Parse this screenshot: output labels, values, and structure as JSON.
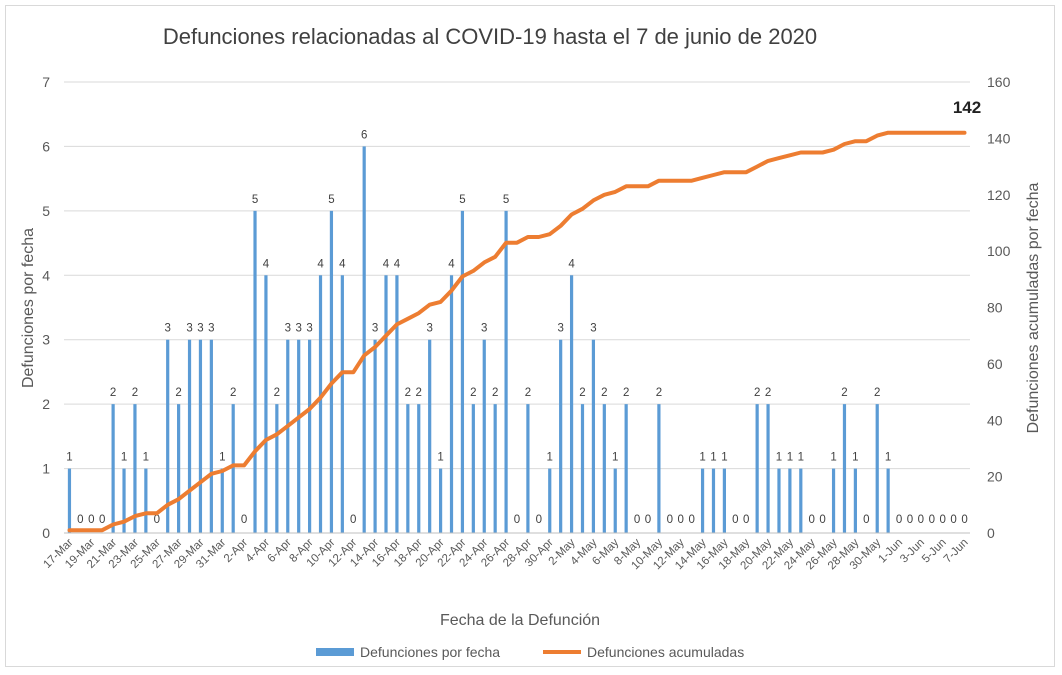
{
  "chart_data": {
    "type": "bar+line",
    "title": "Defunciones relacionadas al COVID-19 hasta el 7 de junio de 2020",
    "xlabel": "Fecha de la Defunción",
    "ylabel_left": "Defunciones por fecha",
    "ylabel_right": "Defunciones acumuladas por fecha",
    "ylim_left": [
      0,
      7
    ],
    "ylim_right": [
      0,
      160
    ],
    "yticks_left": [
      "0",
      "1",
      "2",
      "3",
      "4",
      "5",
      "6",
      "7"
    ],
    "yticks_right": [
      "0",
      "20",
      "40",
      "60",
      "80",
      "100",
      "120",
      "140",
      "160"
    ],
    "xtick_labels": [
      "17-Mar",
      "19-Mar",
      "21-Mar",
      "23-Mar",
      "25-Mar",
      "27-Mar",
      "29-Mar",
      "31-Mar",
      "2-Apr",
      "4-Apr",
      "6-Apr",
      "8-Apr",
      "10-Apr",
      "12-Apr",
      "14-Apr",
      "16-Apr",
      "18-Apr",
      "20-Apr",
      "22-Apr",
      "24-Apr",
      "26-Apr",
      "28-Apr",
      "30-Apr",
      "2-May",
      "4-May",
      "6-May",
      "8-May",
      "10-May",
      "12-May",
      "14-May",
      "16-May",
      "18-May",
      "20-May",
      "22-May",
      "24-May",
      "26-May",
      "28-May",
      "30-May",
      "1-Jun",
      "3-Jun",
      "5-Jun",
      "7-Jun"
    ],
    "dates": [
      "17-Mar",
      "18-Mar",
      "19-Mar",
      "20-Mar",
      "21-Mar",
      "22-Mar",
      "23-Mar",
      "24-Mar",
      "25-Mar",
      "26-Mar",
      "27-Mar",
      "28-Mar",
      "29-Mar",
      "30-Mar",
      "31-Mar",
      "1-Apr",
      "2-Apr",
      "3-Apr",
      "4-Apr",
      "5-Apr",
      "6-Apr",
      "7-Apr",
      "8-Apr",
      "9-Apr",
      "10-Apr",
      "11-Apr",
      "12-Apr",
      "13-Apr",
      "14-Apr",
      "15-Apr",
      "16-Apr",
      "17-Apr",
      "18-Apr",
      "19-Apr",
      "20-Apr",
      "21-Apr",
      "22-Apr",
      "23-Apr",
      "24-Apr",
      "25-Apr",
      "26-Apr",
      "27-Apr",
      "28-Apr",
      "29-Apr",
      "30-Apr",
      "1-May",
      "2-May",
      "3-May",
      "4-May",
      "5-May",
      "6-May",
      "7-May",
      "8-May",
      "9-May",
      "10-May",
      "11-May",
      "12-May",
      "13-May",
      "14-May",
      "15-May",
      "16-May",
      "17-May",
      "18-May",
      "19-May",
      "20-May",
      "21-May",
      "22-May",
      "23-May",
      "24-May",
      "25-May",
      "26-May",
      "27-May",
      "28-May",
      "29-May",
      "30-May",
      "31-May",
      "1-Jun",
      "2-Jun",
      "3-Jun",
      "4-Jun",
      "5-Jun",
      "6-Jun",
      "7-Jun"
    ],
    "series": [
      {
        "name": "Defunciones por fecha",
        "type": "bar",
        "axis": "left",
        "color": "#5b9bd5",
        "values": [
          1,
          0,
          0,
          0,
          2,
          1,
          2,
          1,
          0,
          3,
          2,
          3,
          3,
          3,
          1,
          2,
          0,
          5,
          4,
          2,
          3,
          3,
          3,
          4,
          5,
          4,
          0,
          6,
          3,
          4,
          4,
          2,
          2,
          3,
          1,
          4,
          5,
          2,
          3,
          2,
          5,
          0,
          2,
          0,
          1,
          3,
          4,
          2,
          3,
          2,
          1,
          2,
          0,
          0,
          2,
          0,
          0,
          0,
          1,
          1,
          1,
          0,
          0,
          2,
          2,
          1,
          1,
          1,
          0,
          0,
          1,
          2,
          1,
          0,
          2,
          1,
          0,
          0,
          0,
          0,
          0,
          0,
          0
        ]
      },
      {
        "name": "Defunciones acumuladas",
        "type": "line",
        "axis": "right",
        "color": "#ed7d31",
        "values": [
          1,
          1,
          1,
          1,
          3,
          4,
          6,
          7,
          7,
          10,
          12,
          15,
          18,
          21,
          22,
          24,
          24,
          29,
          33,
          35,
          38,
          41,
          44,
          48,
          53,
          57,
          57,
          63,
          66,
          70,
          74,
          76,
          78,
          81,
          82,
          86,
          91,
          93,
          96,
          98,
          103,
          103,
          105,
          105,
          106,
          109,
          113,
          115,
          118,
          120,
          121,
          123,
          123,
          123,
          125,
          125,
          125,
          125,
          126,
          127,
          128,
          128,
          128,
          130,
          132,
          133,
          134,
          135,
          135,
          135,
          136,
          138,
          139,
          139,
          141,
          142,
          142,
          142,
          142,
          142,
          142,
          142,
          142
        ]
      }
    ],
    "callout": "142",
    "legend_position": "bottom",
    "grid": "horizontal"
  }
}
